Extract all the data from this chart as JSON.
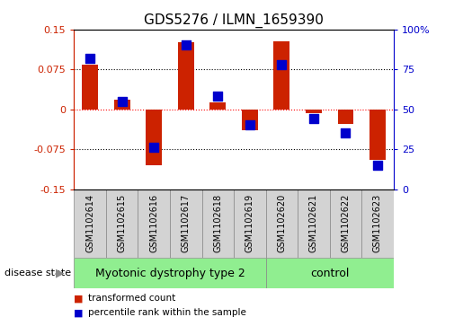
{
  "title": "GDS5276 / ILMN_1659390",
  "samples": [
    "GSM1102614",
    "GSM1102615",
    "GSM1102616",
    "GSM1102617",
    "GSM1102618",
    "GSM1102619",
    "GSM1102620",
    "GSM1102621",
    "GSM1102622",
    "GSM1102623"
  ],
  "red_values": [
    0.083,
    0.018,
    -0.105,
    0.125,
    0.012,
    -0.04,
    0.128,
    -0.008,
    -0.028,
    -0.095
  ],
  "blue_values_pct": [
    82,
    55,
    26,
    90,
    58,
    40,
    78,
    44,
    35,
    15
  ],
  "groups": [
    {
      "label": "Myotonic dystrophy type 2",
      "start": 0,
      "end": 6,
      "color": "#90EE90"
    },
    {
      "label": "control",
      "start": 6,
      "end": 10,
      "color": "#90EE90"
    }
  ],
  "ylim_left": [
    -0.15,
    0.15
  ],
  "ylim_right": [
    0,
    100
  ],
  "yticks_left": [
    -0.15,
    -0.075,
    0,
    0.075,
    0.15
  ],
  "yticks_right": [
    0,
    25,
    50,
    75,
    100
  ],
  "ytick_labels_left": [
    "-0.15",
    "-0.075",
    "0",
    "0.075",
    "0.15"
  ],
  "ytick_labels_right": [
    "0",
    "25",
    "50",
    "75",
    "100%"
  ],
  "hlines": [
    0.075,
    0,
    -0.075
  ],
  "red_color": "#CC2200",
  "blue_color": "#0000CC",
  "bar_width": 0.5,
  "blue_marker_size": 45,
  "disease_state_label": "disease state",
  "legend_red": "transformed count",
  "legend_blue": "percentile rank within the sample",
  "group_label_fontsize": 9,
  "sample_fontsize": 7,
  "title_fontsize": 11,
  "sample_box_color": "#D3D3D3",
  "sample_box_edge": "#888888"
}
